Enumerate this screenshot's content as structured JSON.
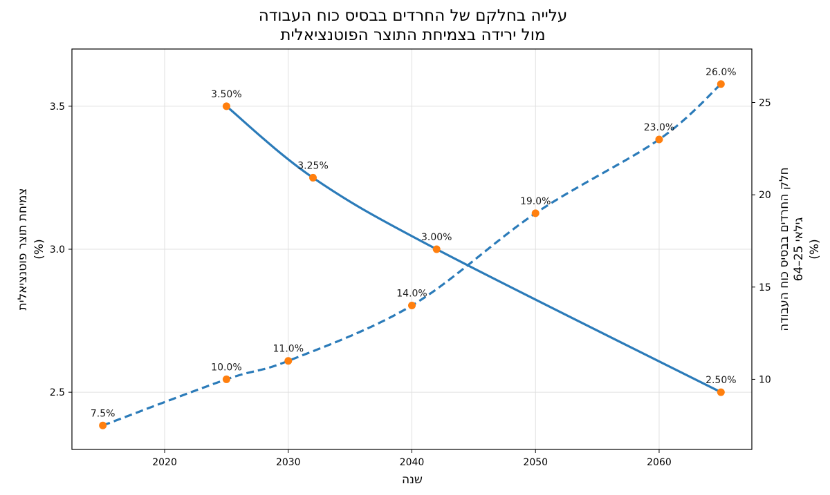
{
  "chart_data": {
    "type": "line",
    "title_lines": [
      "עלייה בחלקם של החרדים בבסיס כוח העבודה",
      "מול ירידה בצמיחת התוצר הפוטנציאלית"
    ],
    "xlabel": "שנה",
    "ylabel_left": [
      "צמיחת תוצר פוטנציאלית",
      "(%)"
    ],
    "ylabel_right": [
      "חלק החרדים בבסיס כוח העבודה",
      "גילאי 25–64",
      "(%)"
    ],
    "xlim": [
      2012.5,
      2067.5
    ],
    "ylim_left": [
      2.3,
      3.7
    ],
    "ylim_right": [
      6.2,
      27.9
    ],
    "xticks": [
      2020,
      2030,
      2040,
      2050,
      2060
    ],
    "yticks_left": [
      2.5,
      3.0,
      3.5
    ],
    "yticks_right": [
      10,
      15,
      20,
      25
    ],
    "grid": true,
    "colors": {
      "line": "#2b7bb9",
      "marker": "#ff7f0e",
      "grid": "#e0e0e0"
    },
    "series": [
      {
        "axis": "left",
        "style": "solid",
        "x": [
          2025,
          2032,
          2042,
          2065
        ],
        "values": [
          3.5,
          3.25,
          3.0,
          2.5
        ],
        "labels": [
          "3.50%",
          "3.25%",
          "3.00%",
          "2.50%"
        ]
      },
      {
        "axis": "right",
        "style": "dashed",
        "x": [
          2015,
          2025,
          2030,
          2040,
          2050,
          2060,
          2065
        ],
        "values": [
          7.5,
          10.0,
          11.0,
          14.0,
          19.0,
          23.0,
          26.0
        ],
        "labels": [
          "7.5%",
          "10.0%",
          "11.0%",
          "14.0%",
          "19.0%",
          "23.0%",
          "26.0%"
        ]
      }
    ]
  }
}
